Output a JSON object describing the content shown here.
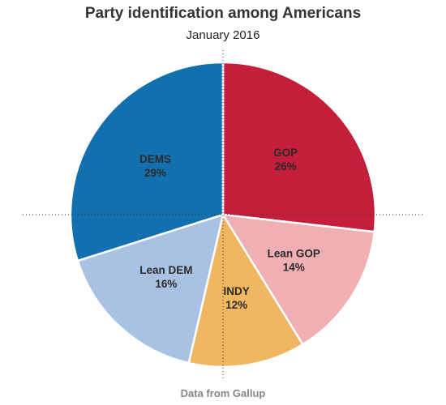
{
  "chart_data": {
    "type": "pie",
    "title": "Party identification among Americans",
    "subtitle": "January 2016",
    "source": "Data from Gallup",
    "slices": [
      {
        "name": "GOP",
        "value": 26,
        "label": "26%",
        "color": "#c41e3a"
      },
      {
        "name": "Lean GOP",
        "value": 14,
        "label": "14%",
        "color": "#efafb3"
      },
      {
        "name": "INDY",
        "value": 12,
        "label": "12%",
        "color": "#f0b661"
      },
      {
        "name": "Lean DEM",
        "value": 16,
        "label": "16%",
        "color": "#a9c2e4"
      },
      {
        "name": "DEMS",
        "value": 29,
        "label": "29%",
        "color": "#1170ad"
      }
    ],
    "start": "12 o'clock",
    "direction": "clockwise",
    "crosshair": "dotted"
  }
}
